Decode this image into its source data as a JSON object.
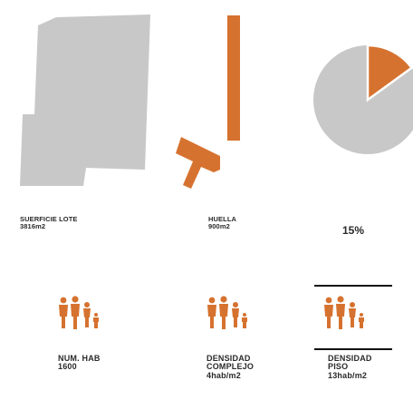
{
  "colors": {
    "gray": "#c8c8c8",
    "orange": "#d6722f",
    "text": "#2a2a2a",
    "rule": "#111111"
  },
  "labels": {
    "superficie": {
      "title": "SUERFICIE LOTE",
      "value": "3816m2"
    },
    "huella": {
      "title": "HUELLA",
      "value": "900m2"
    },
    "percentage": "15%",
    "num_hab": {
      "title": "NUM. HAB",
      "value": "1600"
    },
    "densidad_complejo": {
      "line1": "DENSIDAD",
      "line2": "COMPLEJO",
      "line3": "4hab/m2"
    },
    "densidad_piso": {
      "line1": "DENSIDAD",
      "line2": "PISO",
      "line3": "13hab/m2"
    }
  },
  "pie": {
    "highlight_fraction": 0.15
  },
  "icons": {
    "people_group": "people-group-icon"
  }
}
